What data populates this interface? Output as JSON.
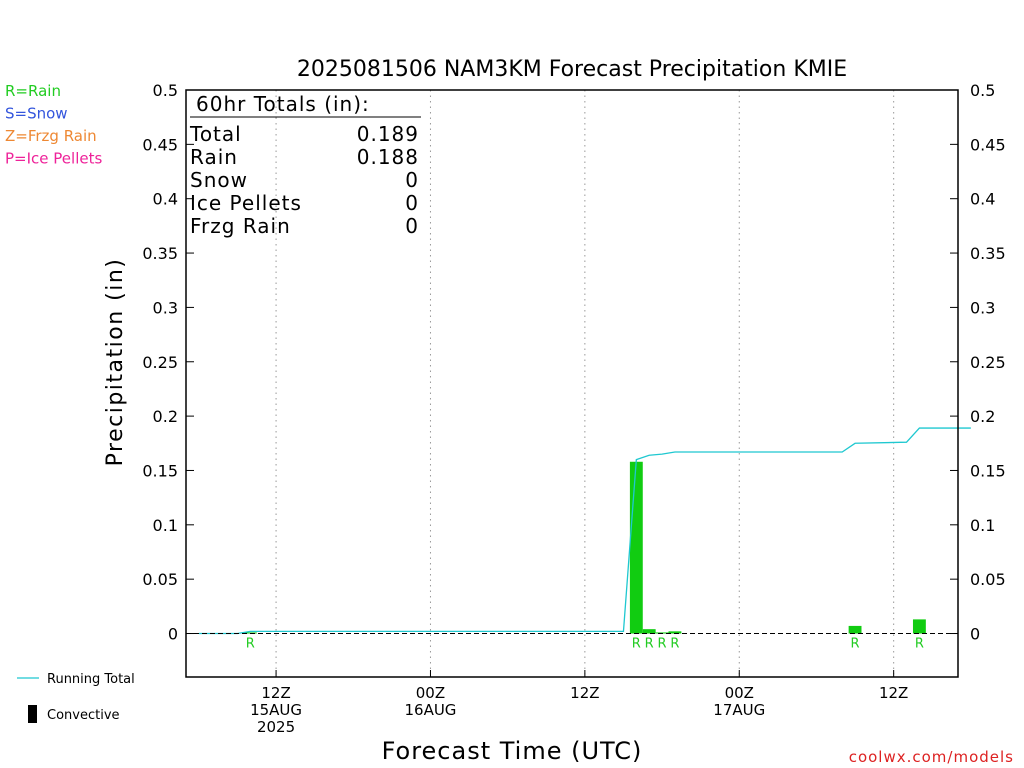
{
  "chart_data": {
    "type": "bar",
    "title": "2025081506 NAM3KM Forecast Precipitation KMIE",
    "xlabel": "Forecast Time (UTC)",
    "ylabel": "Precipitation (in)",
    "ylim": [
      -0.04,
      0.5
    ],
    "yticks": [
      0,
      0.05,
      0.1,
      0.15,
      0.2,
      0.25,
      0.3,
      0.35,
      0.4,
      0.45,
      0.5
    ],
    "xlim_hours": [
      -1,
      59
    ],
    "xticks": [
      {
        "hour": 6,
        "line1": "12Z",
        "line2": "15AUG",
        "line3": "2025"
      },
      {
        "hour": 18,
        "line1": "00Z",
        "line2": "16AUG",
        "line3": ""
      },
      {
        "hour": 30,
        "line1": "12Z",
        "line2": "",
        "line3": ""
      },
      {
        "hour": 42,
        "line1": "00Z",
        "line2": "17AUG",
        "line3": ""
      },
      {
        "hour": 54,
        "line1": "12Z",
        "line2": "",
        "line3": ""
      }
    ],
    "grid": "vertical dotted",
    "legend": [
      {
        "label": "R=Rain",
        "color": "#22cc22"
      },
      {
        "label": "S=Snow",
        "color": "#3355dd"
      },
      {
        "label": "Z=Frzg Rain",
        "color": "#ee8833"
      },
      {
        "label": "P=Ice Pellets",
        "color": "#ee2299"
      }
    ],
    "bottom_legend": [
      {
        "label": "Running Total",
        "kind": "line",
        "color": "#1fc8d0"
      },
      {
        "label": "Convective",
        "kind": "bar",
        "color": "#000000"
      }
    ],
    "totals": {
      "header": "60hr Totals (in):",
      "rows": [
        {
          "label": "Total",
          "value": "0.189"
        },
        {
          "label": "Rain",
          "value": "0.188"
        },
        {
          "label": "Snow",
          "value": "0"
        },
        {
          "label": "Ice Pellets",
          "value": "0"
        },
        {
          "label": "Frzg Rain",
          "value": "0"
        }
      ]
    },
    "bars": [
      {
        "hour": 4,
        "value": 0.001,
        "ptype": "R"
      },
      {
        "hour": 34,
        "value": 0.158,
        "ptype": "R"
      },
      {
        "hour": 35,
        "value": 0.004,
        "ptype": "R"
      },
      {
        "hour": 36,
        "value": 0.001,
        "ptype": "R"
      },
      {
        "hour": 37,
        "value": 0.002,
        "ptype": "R"
      },
      {
        "hour": 51,
        "value": 0.007,
        "ptype": "R"
      },
      {
        "hour": 56,
        "value": 0.013,
        "ptype": "R"
      }
    ],
    "running_total": {
      "hours": [
        0,
        3,
        4,
        33,
        34,
        35,
        36,
        37,
        50,
        51,
        55,
        56,
        60
      ],
      "values": [
        0,
        0,
        0.002,
        0.002,
        0.16,
        0.164,
        0.165,
        0.167,
        0.167,
        0.175,
        0.176,
        0.189,
        0.189
      ]
    },
    "bar_color": "#11cc11",
    "line_color": "#1fc8d0"
  },
  "credit": "coolwx.com/models"
}
